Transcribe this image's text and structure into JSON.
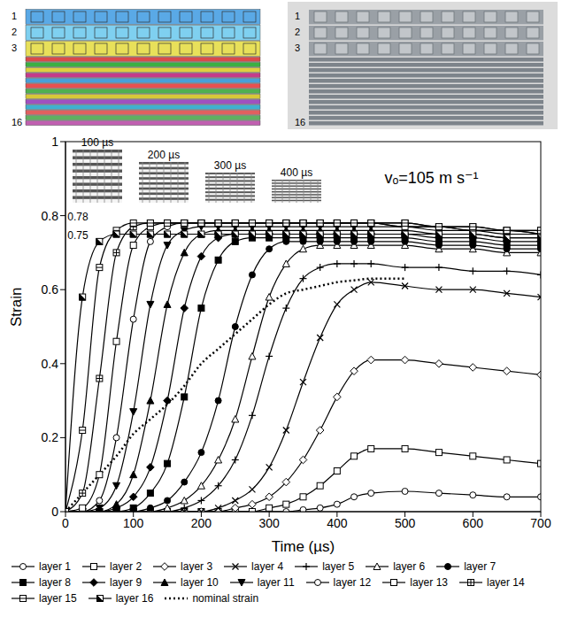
{
  "chart_data": {
    "type": "line",
    "x_label": "Time (µs)",
    "y_label": "Strain",
    "xlim": [
      0,
      700
    ],
    "xticks": [
      0,
      100,
      200,
      300,
      400,
      500,
      600,
      700
    ],
    "ylim": [
      0,
      1
    ],
    "yticks": [
      0,
      0.2,
      0.4,
      0.6,
      0.8,
      1
    ],
    "grid": false,
    "legend": "bottom",
    "annotations": [
      {
        "text": "vₒ=105 m s⁻¹",
        "x": 470,
        "y": 0.9
      },
      {
        "text": "0.78",
        "x": 3,
        "y": 0.795
      },
      {
        "text": "0.75",
        "x": 3,
        "y": 0.745
      }
    ],
    "insets": [
      {
        "label": "100 µs"
      },
      {
        "label": "200 µs"
      },
      {
        "label": "300 µs"
      },
      {
        "label": "400 µs"
      }
    ],
    "x": [
      0,
      25,
      50,
      75,
      100,
      125,
      150,
      175,
      200,
      225,
      250,
      275,
      300,
      325,
      350,
      375,
      400,
      425,
      450,
      500,
      550,
      600,
      650,
      700
    ],
    "series": [
      {
        "name": "layer 1",
        "color": "#000000",
        "marker": "circle",
        "line_style": "solid",
        "values": [
          0,
          0,
          0,
          0,
          0,
          0,
          0,
          0,
          0,
          0,
          0,
          0,
          0,
          0,
          0.005,
          0.01,
          0.02,
          0.04,
          0.05,
          0.055,
          0.05,
          0.045,
          0.04,
          0.04
        ]
      },
      {
        "name": "layer 2",
        "color": "#000000",
        "marker": "square",
        "line_style": "solid",
        "values": [
          0,
          0,
          0,
          0,
          0,
          0,
          0,
          0,
          0,
          0,
          0,
          0,
          0.01,
          0.02,
          0.04,
          0.07,
          0.11,
          0.15,
          0.17,
          0.17,
          0.16,
          0.15,
          0.14,
          0.13
        ]
      },
      {
        "name": "layer 3",
        "color": "#000000",
        "marker": "diamond",
        "line_style": "solid",
        "values": [
          0,
          0,
          0,
          0,
          0,
          0,
          0,
          0,
          0,
          0,
          0.01,
          0.02,
          0.04,
          0.08,
          0.14,
          0.22,
          0.31,
          0.38,
          0.41,
          0.41,
          0.4,
          0.39,
          0.38,
          0.37
        ]
      },
      {
        "name": "layer 4",
        "color": "#000000",
        "marker": "cross",
        "line_style": "solid",
        "values": [
          0,
          0,
          0,
          0,
          0,
          0,
          0,
          0,
          0,
          0.01,
          0.03,
          0.06,
          0.12,
          0.22,
          0.35,
          0.47,
          0.56,
          0.6,
          0.62,
          0.61,
          0.6,
          0.6,
          0.59,
          0.58
        ]
      },
      {
        "name": "layer 5",
        "color": "#000000",
        "marker": "plus",
        "line_style": "solid",
        "values": [
          0,
          0,
          0,
          0,
          0,
          0,
          0,
          0.01,
          0.03,
          0.07,
          0.14,
          0.26,
          0.42,
          0.55,
          0.63,
          0.66,
          0.67,
          0.67,
          0.67,
          0.66,
          0.66,
          0.65,
          0.65,
          0.64
        ]
      },
      {
        "name": "layer 6",
        "color": "#000000",
        "marker": "triangle",
        "line_style": "solid",
        "values": [
          0,
          0,
          0,
          0,
          0,
          0,
          0.01,
          0.03,
          0.07,
          0.14,
          0.25,
          0.42,
          0.58,
          0.67,
          0.71,
          0.72,
          0.72,
          0.72,
          0.72,
          0.72,
          0.71,
          0.71,
          0.7,
          0.7
        ]
      },
      {
        "name": "layer 7",
        "color": "#000000",
        "marker": "circle_filled",
        "line_style": "solid",
        "values": [
          0,
          0,
          0,
          0,
          0,
          0.01,
          0.03,
          0.08,
          0.16,
          0.3,
          0.5,
          0.64,
          0.71,
          0.73,
          0.73,
          0.73,
          0.73,
          0.73,
          0.73,
          0.73,
          0.72,
          0.72,
          0.71,
          0.71
        ]
      },
      {
        "name": "layer 8",
        "color": "#000000",
        "marker": "square_filled",
        "line_style": "solid",
        "values": [
          0,
          0,
          0,
          0,
          0.01,
          0.05,
          0.13,
          0.31,
          0.55,
          0.68,
          0.73,
          0.74,
          0.74,
          0.74,
          0.74,
          0.74,
          0.74,
          0.74,
          0.74,
          0.74,
          0.73,
          0.73,
          0.72,
          0.72
        ]
      },
      {
        "name": "layer 9",
        "color": "#000000",
        "marker": "diamond_filled",
        "line_style": "solid",
        "values": [
          0,
          0,
          0,
          0.01,
          0.04,
          0.12,
          0.3,
          0.55,
          0.69,
          0.74,
          0.75,
          0.75,
          0.75,
          0.75,
          0.75,
          0.75,
          0.75,
          0.75,
          0.75,
          0.75,
          0.74,
          0.74,
          0.73,
          0.73
        ]
      },
      {
        "name": "layer 10",
        "color": "#000000",
        "marker": "triangle_filled",
        "line_style": "solid",
        "values": [
          0,
          0,
          0,
          0.02,
          0.1,
          0.3,
          0.56,
          0.7,
          0.75,
          0.76,
          0.76,
          0.76,
          0.76,
          0.76,
          0.76,
          0.76,
          0.76,
          0.76,
          0.76,
          0.76,
          0.75,
          0.75,
          0.74,
          0.74
        ]
      },
      {
        "name": "layer 11",
        "color": "#000000",
        "marker": "triangle_down_filled",
        "line_style": "solid",
        "values": [
          0,
          0,
          0.01,
          0.07,
          0.27,
          0.56,
          0.72,
          0.76,
          0.77,
          0.77,
          0.77,
          0.77,
          0.77,
          0.77,
          0.77,
          0.77,
          0.77,
          0.77,
          0.77,
          0.77,
          0.76,
          0.76,
          0.75,
          0.75
        ]
      },
      {
        "name": "layer 12",
        "color": "#000000",
        "marker": "circle",
        "line_style": "solid",
        "values": [
          0,
          0,
          0.03,
          0.2,
          0.52,
          0.73,
          0.77,
          0.78,
          0.78,
          0.78,
          0.78,
          0.78,
          0.78,
          0.78,
          0.78,
          0.78,
          0.78,
          0.78,
          0.78,
          0.77,
          0.77,
          0.76,
          0.76,
          0.75
        ]
      },
      {
        "name": "layer 13",
        "color": "#000000",
        "marker": "square",
        "line_style": "solid",
        "values": [
          0,
          0.01,
          0.1,
          0.46,
          0.72,
          0.77,
          0.78,
          0.78,
          0.78,
          0.78,
          0.78,
          0.78,
          0.78,
          0.78,
          0.78,
          0.78,
          0.78,
          0.78,
          0.78,
          0.77,
          0.77,
          0.76,
          0.76,
          0.75
        ]
      },
      {
        "name": "layer 14",
        "color": "#000000",
        "marker": "square_plus",
        "line_style": "solid",
        "values": [
          0,
          0.05,
          0.36,
          0.7,
          0.77,
          0.78,
          0.78,
          0.78,
          0.78,
          0.78,
          0.78,
          0.78,
          0.78,
          0.78,
          0.78,
          0.78,
          0.78,
          0.78,
          0.78,
          0.78,
          0.77,
          0.77,
          0.76,
          0.76
        ]
      },
      {
        "name": "layer 15",
        "color": "#000000",
        "marker": "square_minus",
        "line_style": "solid",
        "values": [
          0,
          0.22,
          0.66,
          0.76,
          0.78,
          0.78,
          0.78,
          0.78,
          0.78,
          0.78,
          0.78,
          0.78,
          0.78,
          0.78,
          0.78,
          0.78,
          0.78,
          0.78,
          0.78,
          0.78,
          0.77,
          0.77,
          0.76,
          0.76
        ]
      },
      {
        "name": "layer 16",
        "color": "#000000",
        "marker": "square_half",
        "line_style": "solid",
        "values": [
          0,
          0.58,
          0.73,
          0.75,
          0.75,
          0.75,
          0.75,
          0.75,
          0.75,
          0.75,
          0.75,
          0.75,
          0.75,
          0.75,
          0.75,
          0.75,
          0.75,
          0.75,
          0.75,
          0.75,
          0.75,
          0.75,
          0.74,
          0.74
        ]
      },
      {
        "name": "nominal strain",
        "color": "#000000",
        "marker": "none",
        "line_style": "dotted",
        "values": [
          0,
          0.05,
          0.1,
          0.15,
          0.21,
          0.25,
          0.29,
          0.34,
          0.4,
          0.44,
          0.48,
          0.52,
          0.56,
          0.59,
          0.6,
          0.61,
          0.62,
          0.625,
          0.63,
          0.63,
          null,
          null,
          null,
          null
        ]
      }
    ]
  },
  "top_images": [
    {
      "labels": [
        "1",
        "2",
        "3",
        "16"
      ]
    },
    {
      "labels": [
        "1",
        "2",
        "3",
        "16"
      ]
    }
  ]
}
